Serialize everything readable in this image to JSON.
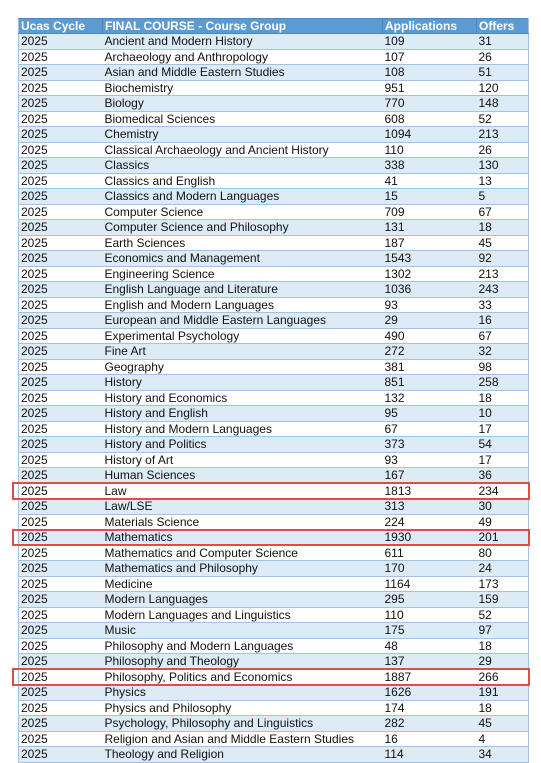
{
  "headers": [
    "Ucas Cycle",
    "FINAL COURSE - Course Group",
    "Applications",
    "Offers"
  ],
  "rows": [
    [
      "2025",
      "Ancient and Modern History",
      "109",
      "31"
    ],
    [
      "2025",
      "Archaeology and Anthropology",
      "107",
      "26"
    ],
    [
      "2025",
      "Asian and Middle Eastern Studies",
      "108",
      "51"
    ],
    [
      "2025",
      "Biochemistry",
      "951",
      "120"
    ],
    [
      "2025",
      "Biology",
      "770",
      "148"
    ],
    [
      "2025",
      "Biomedical Sciences",
      "608",
      "52"
    ],
    [
      "2025",
      "Chemistry",
      "1094",
      "213"
    ],
    [
      "2025",
      "Classical Archaeology and Ancient History",
      "110",
      "26"
    ],
    [
      "2025",
      "Classics",
      "338",
      "130"
    ],
    [
      "2025",
      "Classics and English",
      "41",
      "13"
    ],
    [
      "2025",
      "Classics and Modern Languages",
      "15",
      "5"
    ],
    [
      "2025",
      "Computer Science",
      "709",
      "67"
    ],
    [
      "2025",
      "Computer Science and Philosophy",
      "131",
      "18"
    ],
    [
      "2025",
      "Earth Sciences",
      "187",
      "45"
    ],
    [
      "2025",
      "Economics and Management",
      "1543",
      "92"
    ],
    [
      "2025",
      "Engineering Science",
      "1302",
      "213"
    ],
    [
      "2025",
      "English Language and Literature",
      "1036",
      "243"
    ],
    [
      "2025",
      "English and Modern Languages",
      "93",
      "33"
    ],
    [
      "2025",
      "European and Middle Eastern Languages",
      "29",
      "16"
    ],
    [
      "2025",
      "Experimental Psychology",
      "490",
      "67"
    ],
    [
      "2025",
      "Fine Art",
      "272",
      "32"
    ],
    [
      "2025",
      "Geography",
      "381",
      "98"
    ],
    [
      "2025",
      "History",
      "851",
      "258"
    ],
    [
      "2025",
      "History and Economics",
      "132",
      "18"
    ],
    [
      "2025",
      "History and English",
      "95",
      "10"
    ],
    [
      "2025",
      "History and Modern Languages",
      "67",
      "17"
    ],
    [
      "2025",
      "History and Politics",
      "373",
      "54"
    ],
    [
      "2025",
      "History of Art",
      "93",
      "17"
    ],
    [
      "2025",
      "Human Sciences",
      "167",
      "36"
    ],
    [
      "2025",
      "Law",
      "1813",
      "234"
    ],
    [
      "2025",
      "Law/LSE",
      "313",
      "30"
    ],
    [
      "2025",
      "Materials Science",
      "224",
      "49"
    ],
    [
      "2025",
      "Mathematics",
      "1930",
      "201"
    ],
    [
      "2025",
      "Mathematics and Computer Science",
      "611",
      "80"
    ],
    [
      "2025",
      "Mathematics and Philosophy",
      "170",
      "24"
    ],
    [
      "2025",
      "Medicine",
      "1164",
      "173"
    ],
    [
      "2025",
      "Modern Languages",
      "295",
      "159"
    ],
    [
      "2025",
      "Modern Languages and Linguistics",
      "110",
      "52"
    ],
    [
      "2025",
      "Music",
      "175",
      "97"
    ],
    [
      "2025",
      "Philosophy and Modern Languages",
      "48",
      "18"
    ],
    [
      "2025",
      "Philosophy and Theology",
      "137",
      "29"
    ],
    [
      "2025",
      "Philosophy, Politics and Economics",
      "1887",
      "266"
    ],
    [
      "2025",
      "Physics",
      "1626",
      "191"
    ],
    [
      "2025",
      "Physics and Philosophy",
      "174",
      "18"
    ],
    [
      "2025",
      "Psychology, Philosophy and Linguistics",
      "282",
      "45"
    ],
    [
      "2025",
      "Religion and Asian and Middle Eastern Studies",
      "16",
      "4"
    ],
    [
      "2025",
      "Theology and Religion",
      "114",
      "34"
    ]
  ],
  "highlighted_rows": [
    29,
    32,
    41
  ],
  "highlight_color": "#e34a4a",
  "header_color": "#5b9bd5",
  "band_color": "#ddebf7"
}
